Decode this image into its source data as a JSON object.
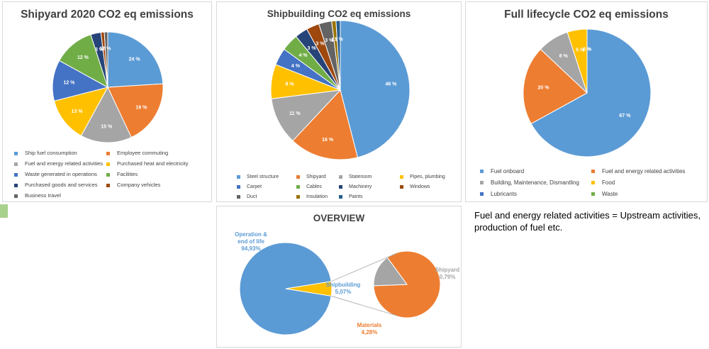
{
  "note": "Fuel and energy related activities = Upstream activities, production of fuel etc.",
  "chart_data": [
    {
      "type": "pie",
      "title": "Shipyard 2020 CO2 eq emissions",
      "categories": [
        "Ship fuel consumption",
        "Employee commuting",
        "Fuel and energy related activities",
        "Purchased heat and electricity",
        "Waste generated in operations",
        "Facilities",
        "Purchased goods and services",
        "Company vehicles",
        "Business travel"
      ],
      "values": [
        24,
        19,
        15,
        13,
        12,
        12,
        3,
        1,
        1
      ],
      "labels": [
        "24 %",
        "19 %",
        "15 %",
        "13 %",
        "12 %",
        "12 %",
        "3 %",
        "1 %",
        "1 %"
      ],
      "colors": [
        "#5b9bd5",
        "#ed7d31",
        "#a5a5a5",
        "#ffc000",
        "#4472c4",
        "#70ad47",
        "#264478",
        "#9e480e",
        "#636363"
      ],
      "legend": "bottom"
    },
    {
      "type": "pie",
      "title": "Shipbuilding CO2 eq emissions",
      "categories": [
        "Steel structure",
        "Shipyard",
        "Stateroom",
        "Pipes, plumbing",
        "Carpet",
        "Cables",
        "Machinery",
        "Windows",
        "Duct",
        "Insulation",
        "Paints"
      ],
      "values": [
        46,
        16,
        11,
        8,
        4,
        4,
        3,
        3,
        3,
        1,
        1
      ],
      "labels": [
        "46 %",
        "16 %",
        "11 %",
        "8 %",
        "4 %",
        "4 %",
        "3 %",
        "3 %",
        "3 %",
        "1 %",
        "1 %"
      ],
      "colors": [
        "#5b9bd5",
        "#ed7d31",
        "#a5a5a5",
        "#ffc000",
        "#4472c4",
        "#70ad47",
        "#264478",
        "#9e480e",
        "#636363",
        "#997300",
        "#255e91"
      ],
      "legend": "bottom"
    },
    {
      "type": "pie",
      "title": "Full lifecycle CO2 eq emissions",
      "categories": [
        "Fuel onboard",
        "Fuel and energy related activities",
        "Building, Maintenance, Dismantling",
        "Food",
        "Lubricants",
        "Waste"
      ],
      "values": [
        67,
        20,
        8,
        5,
        0,
        0
      ],
      "labels": [
        "67 %",
        "20 %",
        "8 %",
        "5 %",
        "0 %",
        "0 %"
      ],
      "colors": [
        "#5b9bd5",
        "#ed7d31",
        "#a5a5a5",
        "#ffc000",
        "#4472c4",
        "#70ad47"
      ],
      "legend": "bottom"
    },
    {
      "type": "pie",
      "title": "OVERVIEW",
      "categories": [
        "Operation & end of life",
        "Shipbuilding"
      ],
      "values": [
        94.93,
        5.07
      ],
      "labels": [
        "Operation & end of life 94,93%",
        "Shipbuilding 5,07%"
      ],
      "colors": [
        "#5b9bd5",
        "#ffc000"
      ],
      "breakdown": {
        "of": "Shipbuilding",
        "categories": [
          "Materials",
          "Shipyard"
        ],
        "values": [
          4.28,
          0.79
        ],
        "labels": [
          "Materials 4,28%",
          "Shipyard 0,79%"
        ],
        "colors": [
          "#ed7d31",
          "#a5a5a5"
        ]
      }
    }
  ]
}
